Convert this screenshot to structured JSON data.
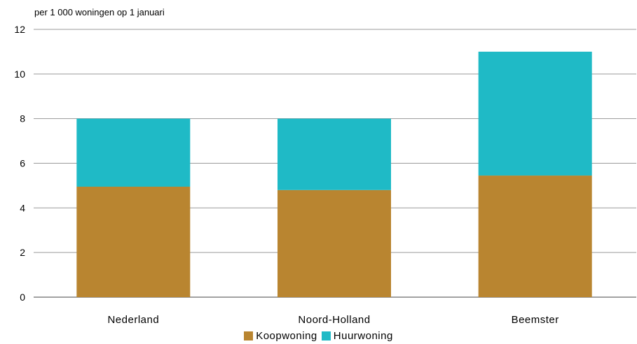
{
  "chart_data": {
    "type": "bar",
    "stacked": true,
    "subtitle": "per 1 000 woningen op 1 januari",
    "categories": [
      "Nederland",
      "Noord-Holland",
      "Beemster"
    ],
    "series": [
      {
        "name": "Koopwoning",
        "color": "#b98530",
        "values": [
          4.95,
          4.8,
          5.45
        ]
      },
      {
        "name": "Huurwoning",
        "color": "#1fbac6",
        "values": [
          3.05,
          3.2,
          5.55
        ]
      }
    ],
    "ylim": [
      0,
      12
    ],
    "yticks": [
      0,
      2,
      4,
      6,
      8,
      10,
      12
    ],
    "grid": true,
    "legend_position": "bottom"
  }
}
